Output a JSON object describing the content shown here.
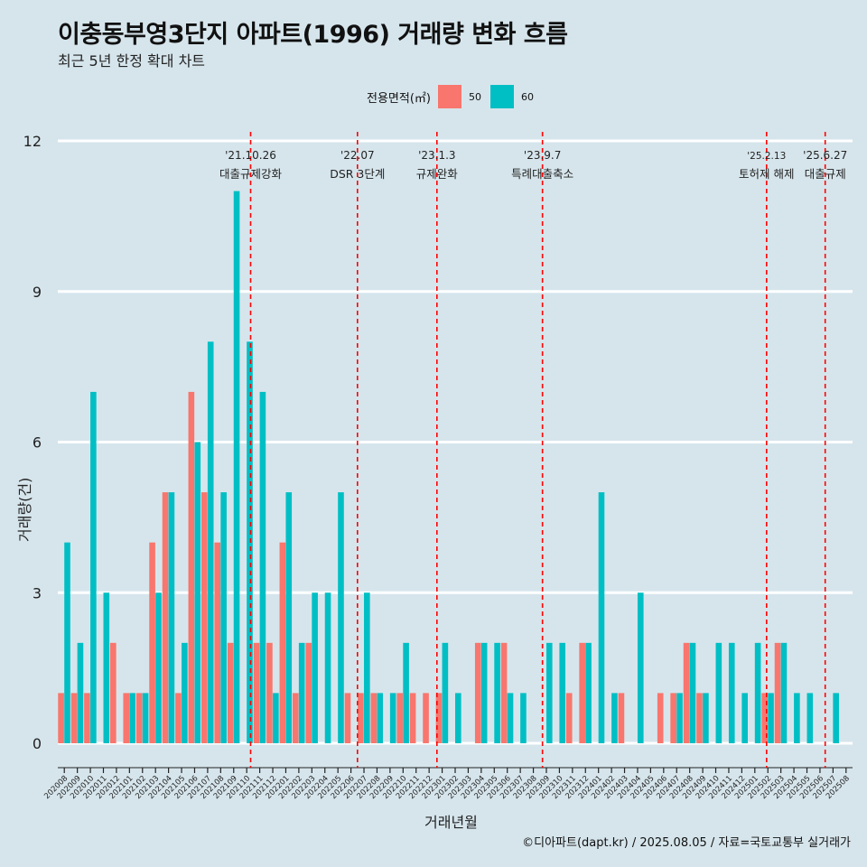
{
  "chart_data": {
    "type": "bar",
    "title": "이충동부영3단지 아파트(1996) 거래량 변화 흐름",
    "subtitle": "최근 5년 한정 확대 차트",
    "xlabel": "거래년월",
    "ylabel": "거래량(건)",
    "caption": "©디아파트(dapt.kr) / 2025.08.05 / 자료=국토교통부 실거래가",
    "legend_title": "전용면적(㎡)",
    "legend_position": "top",
    "ylim": [
      0,
      12
    ],
    "yticks": [
      0,
      3,
      6,
      9,
      12
    ],
    "grid": true,
    "categories": [
      "202008",
      "202009",
      "202010",
      "202011",
      "202012",
      "202101",
      "202102",
      "202103",
      "202104",
      "202105",
      "202106",
      "202107",
      "202108",
      "202109",
      "202110",
      "202111",
      "202112",
      "202201",
      "202202",
      "202203",
      "202204",
      "202205",
      "202206",
      "202207",
      "202208",
      "202209",
      "202210",
      "202211",
      "202212",
      "202301",
      "202302",
      "202303",
      "202304",
      "202305",
      "202306",
      "202307",
      "202308",
      "202309",
      "202310",
      "202311",
      "202312",
      "202401",
      "202402",
      "202403",
      "202404",
      "202405",
      "202406",
      "202407",
      "202408",
      "202409",
      "202410",
      "202411",
      "202412",
      "202501",
      "202502",
      "202503",
      "202504",
      "202505",
      "202506",
      "202507",
      "202508"
    ],
    "series": [
      {
        "name": "50",
        "color": "#f8766d",
        "values": [
          1,
          1,
          1,
          0,
          2,
          1,
          1,
          4,
          5,
          1,
          7,
          5,
          4,
          2,
          0,
          2,
          2,
          4,
          1,
          2,
          0,
          0,
          1,
          1,
          1,
          0,
          1,
          1,
          1,
          1,
          0,
          0,
          2,
          0,
          2,
          0,
          0,
          0,
          0,
          1,
          2,
          0,
          0,
          1,
          0,
          0,
          1,
          1,
          2,
          1,
          0,
          0,
          0,
          0,
          1,
          2,
          0,
          0,
          0,
          0,
          0
        ]
      },
      {
        "name": "60",
        "color": "#00bfc4",
        "values": [
          4,
          2,
          7,
          3,
          0,
          1,
          1,
          3,
          5,
          2,
          6,
          8,
          5,
          11,
          8,
          7,
          1,
          5,
          2,
          3,
          3,
          5,
          0,
          3,
          1,
          1,
          2,
          0,
          0,
          2,
          1,
          0,
          2,
          2,
          1,
          1,
          0,
          2,
          2,
          0,
          2,
          5,
          1,
          0,
          3,
          0,
          0,
          1,
          2,
          1,
          2,
          2,
          1,
          2,
          1,
          2,
          1,
          1,
          0,
          1,
          0
        ]
      }
    ],
    "annotations": [
      {
        "date": "'21.10.26",
        "text": "대출규제강화",
        "category": "202110",
        "offset": 0.8
      },
      {
        "date": "'22.07",
        "text": "DSR 3단계",
        "category": "202207",
        "offset": 0.0
      },
      {
        "date": "'23.1.3",
        "text": "규제완화",
        "category": "202301",
        "offset": 0.1
      },
      {
        "date": "'23.9.7",
        "text": "특례대출축소",
        "category": "202309",
        "offset": 0.2
      },
      {
        "date": "'25.2.13",
        "text": "토허제 해제",
        "category": "202502",
        "offset": 0.4
      },
      {
        "date": "'25.6.27",
        "text": "대출규제",
        "category": "202506",
        "offset": 0.9
      }
    ]
  }
}
